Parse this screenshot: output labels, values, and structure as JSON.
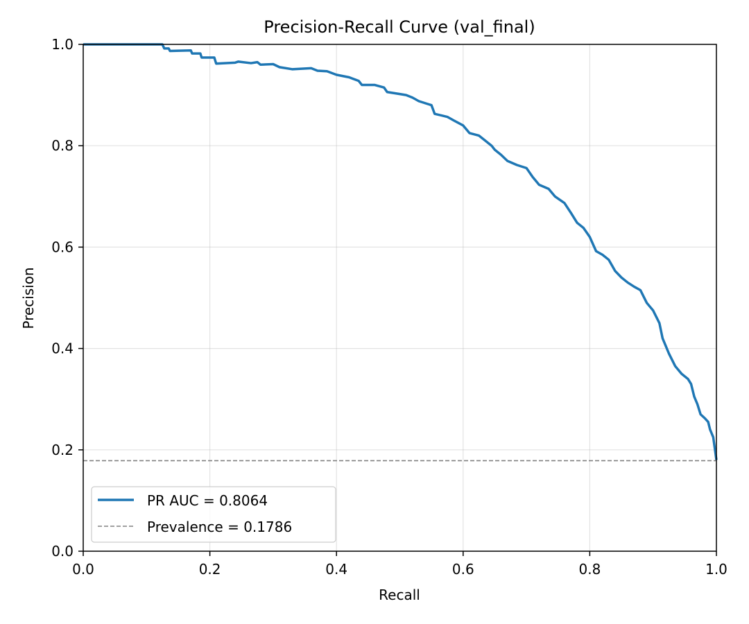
{
  "chart_data": {
    "type": "line",
    "title": "Precision-Recall Curve (val_final)",
    "xlabel": "Recall",
    "ylabel": "Precision",
    "xlim": [
      0,
      1
    ],
    "ylim": [
      0,
      1
    ],
    "xticks": [
      "0.0",
      "0.2",
      "0.4",
      "0.6",
      "0.8",
      "1.0"
    ],
    "yticks": [
      "0.0",
      "0.2",
      "0.4",
      "0.6",
      "0.8",
      "1.0"
    ],
    "grid": true,
    "legend_position": "lower-left",
    "series": [
      {
        "name": "PR AUC = 0.8064",
        "color": "#1f77b4",
        "style": "solid",
        "points": [
          [
            0.0,
            1.0
          ],
          [
            0.125,
            1.0
          ],
          [
            0.128,
            0.992
          ],
          [
            0.135,
            0.992
          ],
          [
            0.137,
            0.987
          ],
          [
            0.17,
            0.988
          ],
          [
            0.172,
            0.982
          ],
          [
            0.185,
            0.982
          ],
          [
            0.187,
            0.974
          ],
          [
            0.207,
            0.974
          ],
          [
            0.21,
            0.962
          ],
          [
            0.24,
            0.964
          ],
          [
            0.245,
            0.966
          ],
          [
            0.265,
            0.963
          ],
          [
            0.275,
            0.965
          ],
          [
            0.28,
            0.96
          ],
          [
            0.3,
            0.961
          ],
          [
            0.31,
            0.955
          ],
          [
            0.33,
            0.951
          ],
          [
            0.36,
            0.953
          ],
          [
            0.37,
            0.948
          ],
          [
            0.385,
            0.947
          ],
          [
            0.4,
            0.94
          ],
          [
            0.42,
            0.935
          ],
          [
            0.435,
            0.928
          ],
          [
            0.44,
            0.92
          ],
          [
            0.46,
            0.92
          ],
          [
            0.475,
            0.915
          ],
          [
            0.48,
            0.906
          ],
          [
            0.5,
            0.902
          ],
          [
            0.51,
            0.9
          ],
          [
            0.52,
            0.895
          ],
          [
            0.53,
            0.888
          ],
          [
            0.545,
            0.882
          ],
          [
            0.55,
            0.88
          ],
          [
            0.555,
            0.863
          ],
          [
            0.575,
            0.857
          ],
          [
            0.585,
            0.85
          ],
          [
            0.6,
            0.84
          ],
          [
            0.61,
            0.825
          ],
          [
            0.625,
            0.82
          ],
          [
            0.635,
            0.81
          ],
          [
            0.645,
            0.8
          ],
          [
            0.65,
            0.792
          ],
          [
            0.66,
            0.782
          ],
          [
            0.67,
            0.77
          ],
          [
            0.685,
            0.762
          ],
          [
            0.7,
            0.756
          ],
          [
            0.71,
            0.738
          ],
          [
            0.72,
            0.723
          ],
          [
            0.735,
            0.715
          ],
          [
            0.745,
            0.7
          ],
          [
            0.76,
            0.687
          ],
          [
            0.77,
            0.668
          ],
          [
            0.78,
            0.648
          ],
          [
            0.79,
            0.638
          ],
          [
            0.8,
            0.62
          ],
          [
            0.81,
            0.592
          ],
          [
            0.82,
            0.585
          ],
          [
            0.83,
            0.575
          ],
          [
            0.84,
            0.553
          ],
          [
            0.85,
            0.54
          ],
          [
            0.86,
            0.53
          ],
          [
            0.87,
            0.522
          ],
          [
            0.88,
            0.515
          ],
          [
            0.89,
            0.49
          ],
          [
            0.9,
            0.475
          ],
          [
            0.91,
            0.45
          ],
          [
            0.915,
            0.42
          ],
          [
            0.925,
            0.39
          ],
          [
            0.935,
            0.365
          ],
          [
            0.945,
            0.35
          ],
          [
            0.955,
            0.34
          ],
          [
            0.96,
            0.33
          ],
          [
            0.965,
            0.305
          ],
          [
            0.97,
            0.29
          ],
          [
            0.975,
            0.27
          ],
          [
            0.982,
            0.262
          ],
          [
            0.987,
            0.255
          ],
          [
            0.99,
            0.24
          ],
          [
            0.995,
            0.225
          ],
          [
            1.0,
            0.18
          ]
        ]
      },
      {
        "name": "Prevalence = 0.1786",
        "color": "#808080",
        "style": "dashed",
        "points": [
          [
            0.0,
            0.1786
          ],
          [
            1.0,
            0.1786
          ]
        ]
      }
    ]
  }
}
